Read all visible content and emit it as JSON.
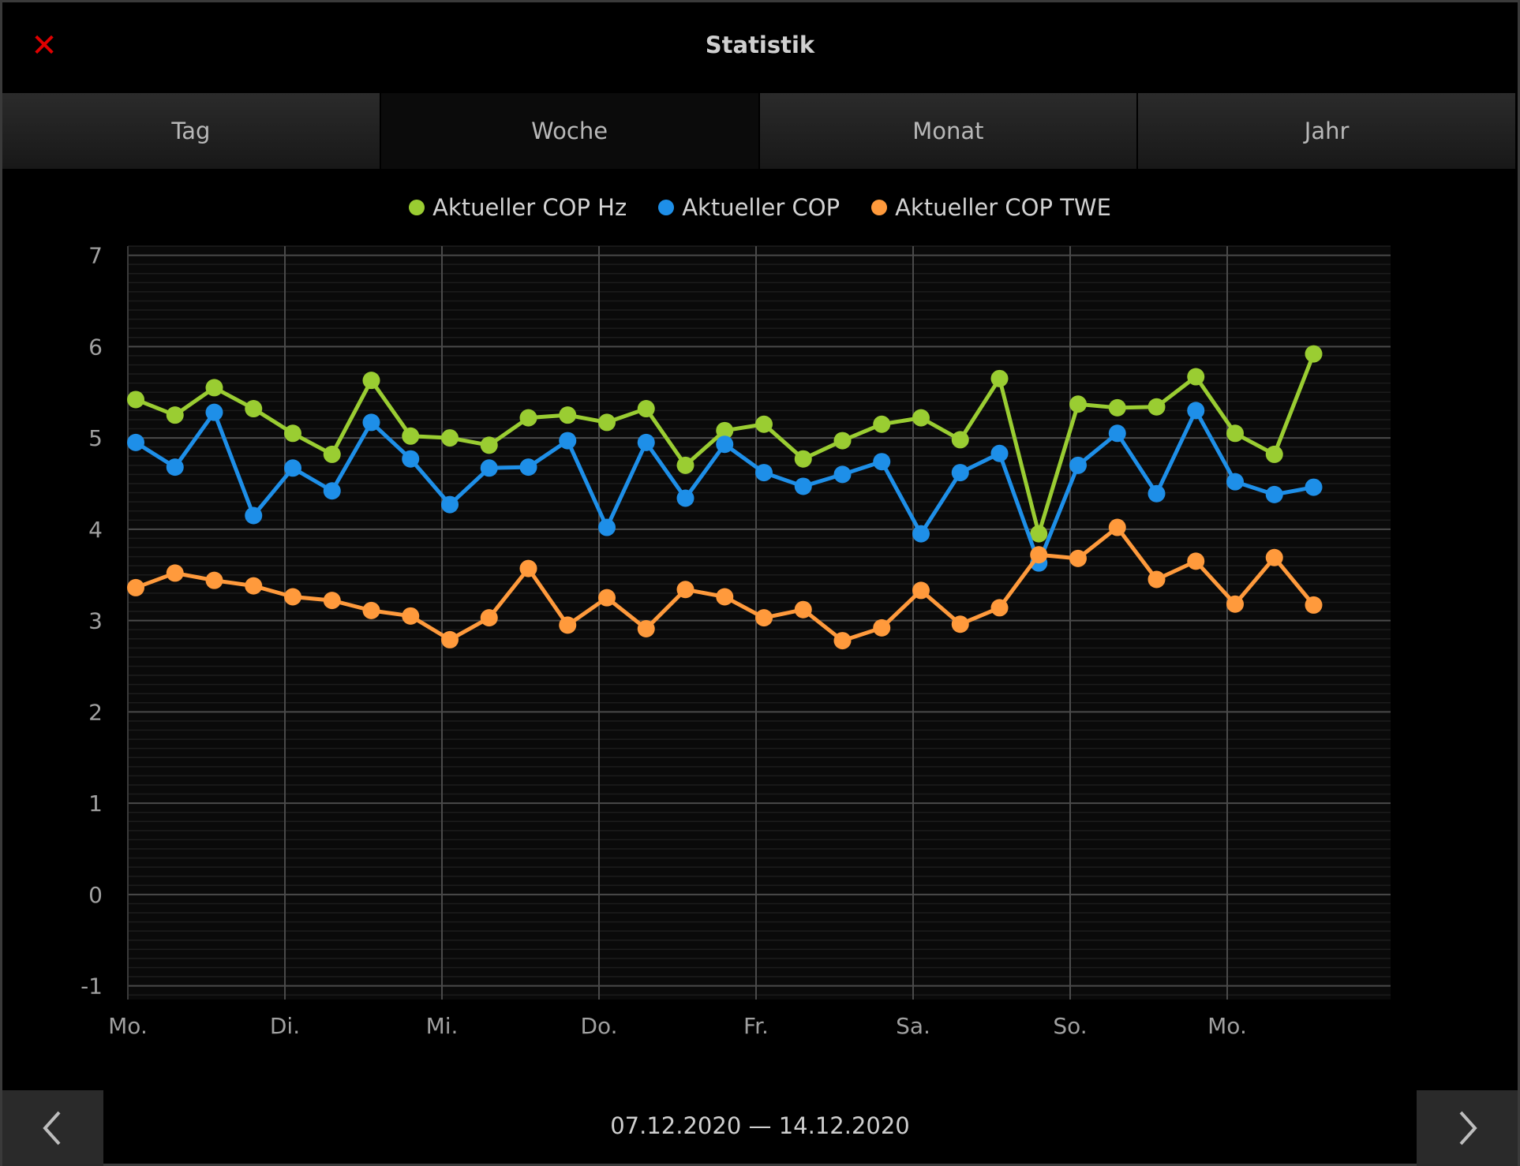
{
  "header": {
    "title": "Statistik",
    "close_icon": "close-icon"
  },
  "tabs": [
    {
      "label": "Tag",
      "active": false
    },
    {
      "label": "Woche",
      "active": true
    },
    {
      "label": "Monat",
      "active": false
    },
    {
      "label": "Jahr",
      "active": false
    }
  ],
  "colors": {
    "green": "#9acd32",
    "blue": "#1e8fe8",
    "orange": "#ff9a3c",
    "close": "#e00000"
  },
  "footer": {
    "date_range": "07.12.2020 — 14.12.2020",
    "prev_icon": "chevron-left-icon",
    "next_icon": "chevron-right-icon"
  },
  "chart_data": {
    "type": "line",
    "x_tick_labels": [
      "Mo.",
      "Di.",
      "Mi.",
      "Do.",
      "Fr.",
      "Sa.",
      "So.",
      "Mo."
    ],
    "y_ticks": [
      -1,
      0,
      1,
      2,
      3,
      4,
      5,
      6,
      7
    ],
    "ylim": [
      -1.15,
      7.1
    ],
    "points_per_day": 4,
    "grid": true,
    "legend_position": "top-center",
    "series": [
      {
        "name": "Aktueller COP Hz",
        "color": "#9acd32",
        "values": [
          5.42,
          5.25,
          5.55,
          5.32,
          5.05,
          4.82,
          5.63,
          5.02,
          5.0,
          4.92,
          5.22,
          5.25,
          5.17,
          5.32,
          4.7,
          5.08,
          5.15,
          4.77,
          4.97,
          5.15,
          5.22,
          4.98,
          5.65,
          3.95,
          5.37,
          5.33,
          5.34,
          5.67,
          5.05,
          4.82,
          5.92
        ]
      },
      {
        "name": "Aktueller COP",
        "color": "#1e8fe8",
        "values": [
          4.95,
          4.68,
          5.28,
          4.15,
          4.67,
          4.42,
          5.17,
          4.77,
          4.27,
          4.67,
          4.68,
          4.97,
          4.02,
          4.95,
          4.34,
          4.93,
          4.62,
          4.47,
          4.6,
          4.74,
          3.95,
          4.62,
          4.83,
          3.63,
          4.7,
          5.05,
          4.39,
          5.3,
          4.52,
          4.38,
          4.46
        ]
      },
      {
        "name": "Aktueller COP TWE",
        "color": "#ff9a3c",
        "values": [
          3.36,
          3.52,
          3.44,
          3.38,
          3.26,
          3.22,
          3.11,
          3.05,
          2.79,
          3.03,
          3.57,
          2.95,
          3.25,
          2.91,
          3.34,
          3.26,
          3.03,
          3.12,
          2.78,
          2.92,
          3.33,
          2.96,
          3.14,
          3.72,
          3.68,
          4.02,
          3.45,
          3.65,
          3.18,
          3.69,
          3.17
        ]
      }
    ]
  }
}
